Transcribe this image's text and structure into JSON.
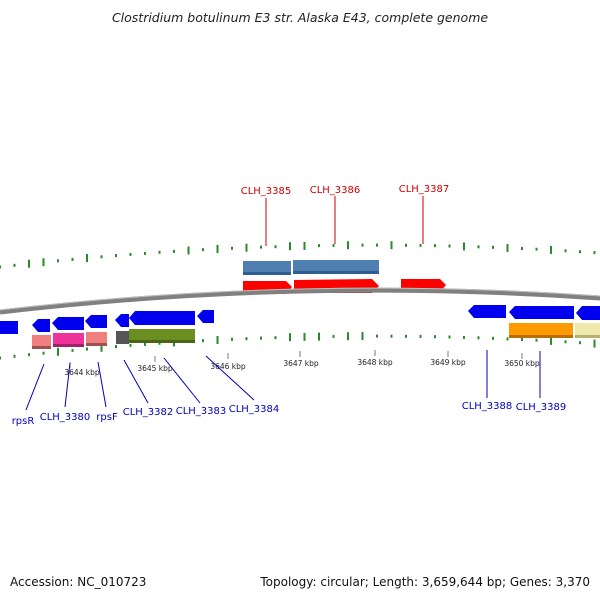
{
  "title": "Clostridium botulinum E3 str. Alaska E43, complete genome",
  "accession": "Accession: NC_010723",
  "topology": "Topology: circular; Length: 3,659,644 bp; Genes: 3,370",
  "scale_labels": [
    "3644 kbp",
    "3645 kbp",
    "3646 kbp",
    "3647 kbp",
    "3648 kbp",
    "3649 kbp",
    "3650 kbp"
  ],
  "gene_labels_top": [
    "CLH_3385",
    "CLH_3386",
    "CLH_3387"
  ],
  "gene_labels_bottom": [
    "rpsR",
    "CLH_3380",
    "rpsF",
    "CLH_3382",
    "CLH_3383",
    "CLH_3384",
    "CLH_3388",
    "CLH_3389"
  ],
  "colors": {
    "forward_cds": "#ff0000",
    "reverse_cds": "#0000ee",
    "gene_blue": "#4f7fb0",
    "backbone": "#808080",
    "gc_ticks": "#2a8a2a",
    "pink": "#ee3399",
    "salmon": "#f08080",
    "olive": "#6b8e23",
    "orange": "#ff9900",
    "khaki": "#eee8aa"
  }
}
